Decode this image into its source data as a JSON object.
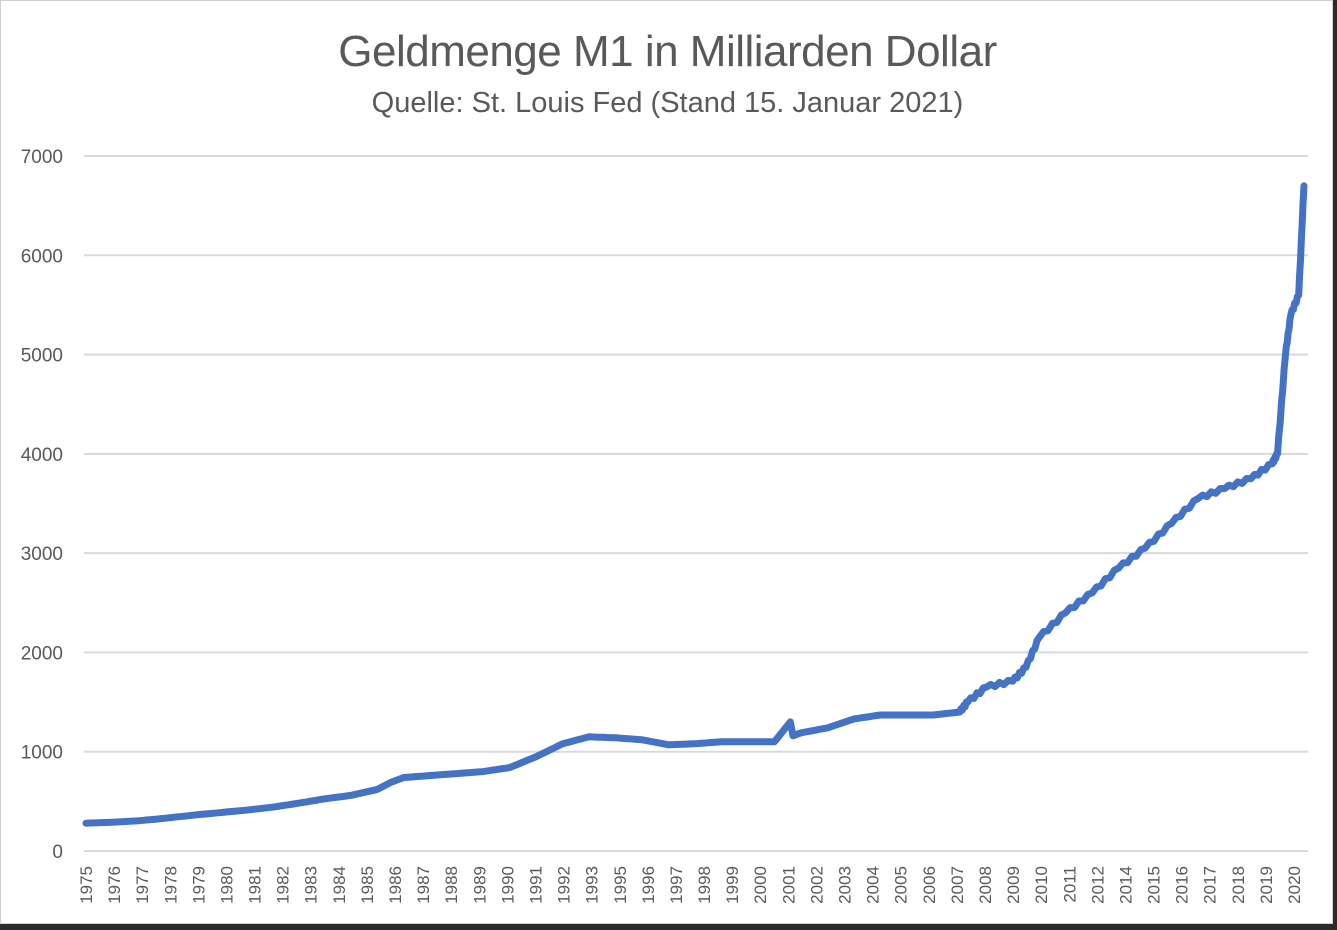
{
  "chart_data": {
    "type": "line",
    "title": "Geldmenge M1 in Milliarden Dollar",
    "subtitle": "Quelle: St. Louis Fed (Stand 15. Januar 2021)",
    "xlabel": "",
    "ylabel": "",
    "ylim": [
      0,
      7000
    ],
    "yticks": [
      0,
      1000,
      2000,
      3000,
      4000,
      5000,
      6000,
      7000
    ],
    "grid": true,
    "legend": null,
    "line_color": "#4472C4",
    "x_tick_labels": [
      "1975",
      "1976",
      "1977",
      "1978",
      "1979",
      "1980",
      "1981",
      "1982",
      "1983",
      "1984",
      "1985",
      "1986",
      "1987",
      "1988",
      "1989",
      "1990",
      "1991",
      "1992",
      "1993",
      "1995",
      "1996",
      "1997",
      "1998",
      "1999",
      "2000",
      "2001",
      "2002",
      "2003",
      "2004",
      "2005",
      "2006",
      "2007",
      "2008",
      "2009",
      "2010",
      "2011",
      "2012",
      "2014",
      "2015",
      "2016",
      "2017",
      "2018",
      "2019",
      "2020"
    ],
    "series": [
      {
        "name": "M1",
        "x": [
          1975.0,
          1976.0,
          1977.0,
          1978.0,
          1979.0,
          1980.0,
          1981.0,
          1982.0,
          1983.0,
          1984.0,
          1985.0,
          1986.0,
          1986.5,
          1987.0,
          1988.0,
          1989.0,
          1990.0,
          1991.0,
          1992.0,
          1993.0,
          1994.0,
          1995.0,
          1996.0,
          1997.0,
          1998.0,
          1999.0,
          2000.0,
          2001.0,
          2001.6,
          2001.7,
          2002.0,
          2003.0,
          2004.0,
          2005.0,
          2006.0,
          2007.0,
          2008.0,
          2008.3,
          2009.0,
          2010.0,
          2010.5,
          2011.0,
          2012.0,
          2013.0,
          2014.0,
          2015.0,
          2016.0,
          2017.0,
          2018.0,
          2019.0,
          2019.8,
          2020.0,
          2020.3,
          2020.5,
          2020.8,
          2021.0
        ],
        "values": [
          280,
          290,
          305,
          330,
          360,
          385,
          410,
          440,
          480,
          525,
          560,
          620,
          690,
          740,
          760,
          780,
          800,
          840,
          950,
          1080,
          1150,
          1140,
          1120,
          1070,
          1080,
          1100,
          1100,
          1100,
          1300,
          1160,
          1190,
          1240,
          1330,
          1370,
          1370,
          1370,
          1400,
          1500,
          1650,
          1710,
          1850,
          2150,
          2400,
          2600,
          2850,
          3050,
          3300,
          3550,
          3650,
          3750,
          3900,
          4000,
          5000,
          5400,
          5600,
          6700
        ]
      }
    ]
  }
}
